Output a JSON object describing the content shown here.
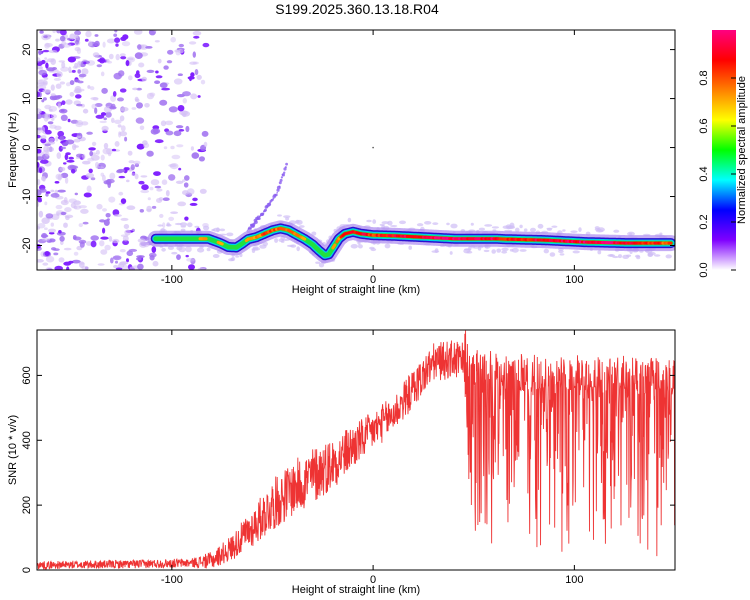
{
  "title": "S199.2025.360.13.18.R04",
  "chart_data": [
    {
      "type": "heatmap",
      "xlabel": "Height of straight line (km)",
      "ylabel": "Frequency (Hz)",
      "xlim": [
        -167,
        150
      ],
      "ylim": [
        -25,
        24
      ],
      "xticks": [
        -100,
        0,
        100
      ],
      "yticks": [
        -20,
        -10,
        0,
        10,
        20
      ],
      "xtick_labels": [
        "-100",
        "0",
        "100"
      ],
      "ytick_labels": [
        "-20",
        "-10",
        "0",
        "10",
        "20"
      ],
      "grid": false,
      "colorbar": {
        "label": "Normalized spectral amplitude",
        "range": [
          0,
          1
        ],
        "ticks": [
          0.0,
          0.2,
          0.4,
          0.6,
          0.8
        ],
        "tick_labels": [
          "0.0",
          "0.2",
          "0.4",
          "0.6",
          "0.8"
        ],
        "colors": [
          "#ffffff",
          "#7f00ff",
          "#0000ff",
          "#00ffff",
          "#00ff00",
          "#ffff00",
          "#ff8000",
          "#ff0000",
          "#ff0080"
        ]
      },
      "noise_region_x": [
        -167,
        -83
      ],
      "ridge": {
        "x": [
          -108,
          -100,
          -90,
          -82,
          -76,
          -72,
          -68,
          -65,
          -62,
          -58,
          -54,
          -50,
          -46,
          -42,
          -38,
          -34,
          -30,
          -27,
          -24,
          -22,
          -20,
          -17,
          -14,
          -10,
          -6,
          0,
          10,
          20,
          30,
          40,
          50,
          60,
          65,
          75,
          85,
          95,
          105,
          115,
          125,
          135,
          148
        ],
        "y": [
          -18.6,
          -18.6,
          -18.6,
          -18.6,
          -19.5,
          -20.3,
          -20.4,
          -19.6,
          -18.7,
          -18.3,
          -17.6,
          -16.9,
          -16.5,
          -16.9,
          -17.8,
          -18.7,
          -19.8,
          -21.0,
          -22.0,
          -21.8,
          -20.5,
          -18.6,
          -17.6,
          -17.2,
          -17.6,
          -17.9,
          -18.0,
          -18.2,
          -18.4,
          -18.6,
          -18.6,
          -18.6,
          -18.7,
          -18.8,
          -18.9,
          -19.1,
          -19.3,
          -19.4,
          -19.5,
          -19.5,
          -19.5
        ],
        "amplitude": [
          0.3,
          0.4,
          0.5,
          0.6,
          0.55,
          0.5,
          0.45,
          0.5,
          0.6,
          0.65,
          0.7,
          0.75,
          0.7,
          0.65,
          0.6,
          0.55,
          0.5,
          0.5,
          0.4,
          0.45,
          0.55,
          0.7,
          0.8,
          0.85,
          0.85,
          0.8,
          0.85,
          0.9,
          0.95,
          0.95,
          0.95,
          0.9,
          0.85,
          0.85,
          0.9,
          0.9,
          0.95,
          0.95,
          0.9,
          0.85,
          0.7
        ]
      },
      "faint_branch": {
        "x": [
          -62,
          -55,
          -48,
          -43
        ],
        "y": [
          -16.8,
          -13.5,
          -9.5,
          -3.5
        ]
      }
    },
    {
      "type": "line",
      "xlabel": "Height of straight line (km)",
      "ylabel": "SNR (10 * v/v)",
      "xlim": [
        -167,
        150
      ],
      "ylim": [
        0,
        740
      ],
      "xticks": [
        -100,
        0,
        100
      ],
      "yticks": [
        0,
        200,
        400,
        600
      ],
      "xtick_labels": [
        "-100",
        "0",
        "100"
      ],
      "ytick_labels": [
        "0",
        "200",
        "400",
        "600"
      ],
      "grid": false,
      "series": [
        {
          "color": "#ee3333",
          "trend": {
            "x": [
              -167,
              -120,
              -90,
              -80,
              -70,
              -60,
              -50,
              -40,
              -30,
              -20,
              -10,
              0,
              10,
              20,
              25,
              30,
              40,
              45,
              48,
              60,
              80,
              100,
              120,
              140,
              150
            ],
            "y": [
              15,
              18,
              22,
              30,
              70,
              130,
              200,
              250,
              290,
              330,
              380,
              430,
              480,
              560,
              600,
              640,
              650,
              640,
              600,
              590,
              580,
              580,
              580,
              570,
              560
            ]
          },
          "noise_amplitude": {
            "x": [
              -167,
              -90,
              -70,
              -50,
              -30,
              0,
              20,
              45,
              48,
              60,
              100,
              150
            ],
            "y": [
              12,
              14,
              40,
              80,
              90,
              60,
              60,
              60,
              300,
              320,
              330,
              330
            ]
          }
        }
      ]
    }
  ]
}
